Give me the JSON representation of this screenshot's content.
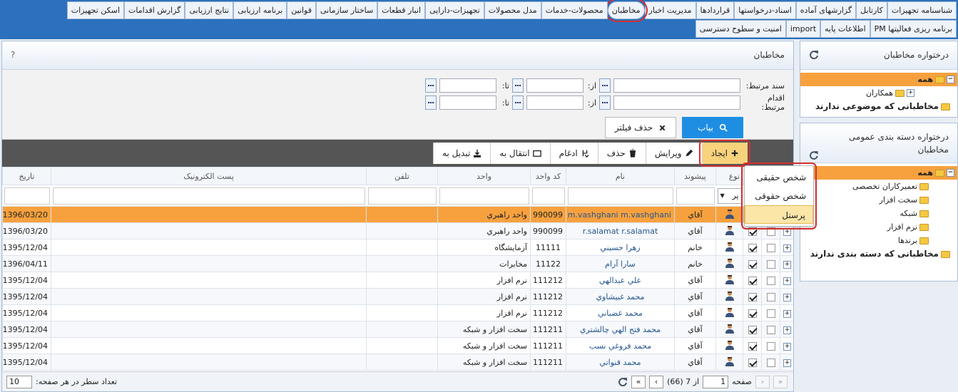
{
  "nav": {
    "row1": [
      "شناسنامه تجهیزات",
      "کارتابل",
      "گزارشهای آماده",
      "اسناد-درخواستها",
      "قراردادها",
      "مدیریت اخبار",
      "مخاطبان",
      "محصولات-خدمات",
      "مدل محصولات",
      "تجهیزات-دارایی",
      "انبار قطعات",
      "ساختار سازمانی",
      "قوانین",
      "برنامه ارزیابی",
      "نتایج ارزیابی",
      "گزارش اقدامات",
      "اسکن تجهیزات"
    ],
    "row2": [
      "برنامه ریزی فعالیتها PM",
      "اطلاعات پایه",
      "import",
      "امنیت و سطوح دسترسی"
    ]
  },
  "sidebar": {
    "tree1": {
      "title": "درختواره مخاطبان",
      "items": [
        "همه",
        "همکاران",
        "مخاطبانی که موضوعی ندارند"
      ]
    },
    "tree2": {
      "title": "درختواره دسته بندی عمومی مخاطبان",
      "items": [
        "همه",
        "تعمیرکاران تخصصی",
        "سخت افزار",
        "شبکه",
        "نرم افزار",
        "برندها",
        "مخاطبانی که دسته بندی ندارند"
      ]
    }
  },
  "main": {
    "title": "مخاطبان",
    "help": "?",
    "filters": {
      "related_doc": "سند مرتبط:",
      "related_action": "اقدام مرتبط:",
      "from": "از:",
      "to": "تا:"
    },
    "search": "بیاب",
    "clear": "حذف فیلتر",
    "toolbar": [
      "ایجاد",
      "ویرایش",
      "حذف",
      "ادغام",
      "انتقال به",
      "تبدیل به"
    ],
    "create_menu": [
      "شخص حقیقی",
      "شخص حقوقی",
      "پرسنل"
    ],
    "columns": [
      "نوع",
      "پیشوند",
      "نام",
      "کد واحد",
      "واحد",
      "تلفن",
      "پست الکترونیک",
      "تاریخ"
    ],
    "type_filter": "پر",
    "rows": [
      {
        "prefix": "آقاي",
        "name": "m.vashghani m.vashghani",
        "code": "990099",
        "unit": "واحد راهبري",
        "date": "1396/03/20"
      },
      {
        "prefix": "آقاي",
        "name": "r.salamat r.salamat",
        "code": "990099",
        "unit": "واحد راهبري",
        "date": "1396/03/20"
      },
      {
        "prefix": "خانم",
        "name": "زهرا حسيني",
        "code": "11111",
        "unit": "آزمايشگاه",
        "date": "1395/12/04"
      },
      {
        "prefix": "خانم",
        "name": "سارا آرام",
        "code": "11122",
        "unit": "مخابرات",
        "date": "1396/04/11"
      },
      {
        "prefix": "آقاي",
        "name": "علي عبدالهي",
        "code": "111212",
        "unit": "نرم افزار",
        "date": "1395/12/04"
      },
      {
        "prefix": "آقاي",
        "name": "محمد غبيشاوي",
        "code": "111212",
        "unit": "نرم افزار",
        "date": "1395/12/04"
      },
      {
        "prefix": "آقاي",
        "name": "محمد غضباني",
        "code": "111212",
        "unit": "نرم افزار",
        "date": "1395/12/04"
      },
      {
        "prefix": "آقاي",
        "name": "محمد فتح الهي چالشتري",
        "code": "111211",
        "unit": "سخت افزار و شبكه",
        "date": "1395/12/04"
      },
      {
        "prefix": "آقاي",
        "name": "محمد فروغي نسب",
        "code": "111211",
        "unit": "سخت افزار و شبكه",
        "date": "1395/12/04"
      },
      {
        "prefix": "آقاي",
        "name": "محمد قنواتي",
        "code": "111211",
        "unit": "سخت افزار و شبكه",
        "date": "1395/12/04"
      }
    ],
    "pager": {
      "page_label": "صفحه",
      "page": "1",
      "of": "از 7 (66)",
      "rows_label": "تعداد سطر در هر صفحه:",
      "rows_per_page": "10"
    }
  }
}
